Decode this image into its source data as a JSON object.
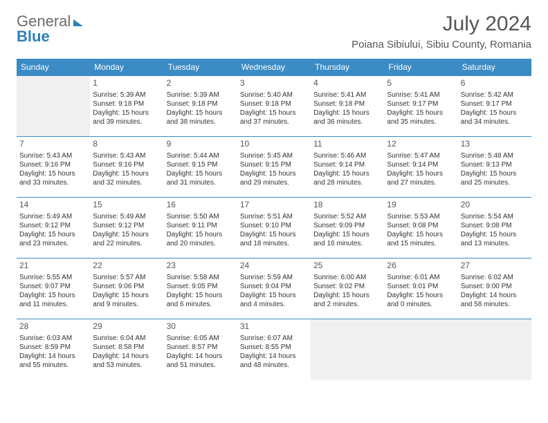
{
  "logo": {
    "general": "General",
    "blue": "Blue"
  },
  "title": "July 2024",
  "location": "Poiana Sibiului, Sibiu County, Romania",
  "colors": {
    "header_bg": "#3b8bc4",
    "header_text": "#ffffff",
    "cell_border": "#3b8bc4",
    "empty_bg": "#f0f0f0",
    "text": "#333333",
    "title_text": "#555555"
  },
  "day_headers": [
    "Sunday",
    "Monday",
    "Tuesday",
    "Wednesday",
    "Thursday",
    "Friday",
    "Saturday"
  ],
  "weeks": [
    [
      null,
      {
        "day": 1,
        "sunrise": "5:39 AM",
        "sunset": "9:18 PM",
        "daylight": "15 hours and 39 minutes."
      },
      {
        "day": 2,
        "sunrise": "5:39 AM",
        "sunset": "9:18 PM",
        "daylight": "15 hours and 38 minutes."
      },
      {
        "day": 3,
        "sunrise": "5:40 AM",
        "sunset": "9:18 PM",
        "daylight": "15 hours and 37 minutes."
      },
      {
        "day": 4,
        "sunrise": "5:41 AM",
        "sunset": "9:18 PM",
        "daylight": "15 hours and 36 minutes."
      },
      {
        "day": 5,
        "sunrise": "5:41 AM",
        "sunset": "9:17 PM",
        "daylight": "15 hours and 35 minutes."
      },
      {
        "day": 6,
        "sunrise": "5:42 AM",
        "sunset": "9:17 PM",
        "daylight": "15 hours and 34 minutes."
      }
    ],
    [
      {
        "day": 7,
        "sunrise": "5:43 AM",
        "sunset": "9:16 PM",
        "daylight": "15 hours and 33 minutes."
      },
      {
        "day": 8,
        "sunrise": "5:43 AM",
        "sunset": "9:16 PM",
        "daylight": "15 hours and 32 minutes."
      },
      {
        "day": 9,
        "sunrise": "5:44 AM",
        "sunset": "9:15 PM",
        "daylight": "15 hours and 31 minutes."
      },
      {
        "day": 10,
        "sunrise": "5:45 AM",
        "sunset": "9:15 PM",
        "daylight": "15 hours and 29 minutes."
      },
      {
        "day": 11,
        "sunrise": "5:46 AM",
        "sunset": "9:14 PM",
        "daylight": "15 hours and 28 minutes."
      },
      {
        "day": 12,
        "sunrise": "5:47 AM",
        "sunset": "9:14 PM",
        "daylight": "15 hours and 27 minutes."
      },
      {
        "day": 13,
        "sunrise": "5:48 AM",
        "sunset": "9:13 PM",
        "daylight": "15 hours and 25 minutes."
      }
    ],
    [
      {
        "day": 14,
        "sunrise": "5:49 AM",
        "sunset": "9:12 PM",
        "daylight": "15 hours and 23 minutes."
      },
      {
        "day": 15,
        "sunrise": "5:49 AM",
        "sunset": "9:12 PM",
        "daylight": "15 hours and 22 minutes."
      },
      {
        "day": 16,
        "sunrise": "5:50 AM",
        "sunset": "9:11 PM",
        "daylight": "15 hours and 20 minutes."
      },
      {
        "day": 17,
        "sunrise": "5:51 AM",
        "sunset": "9:10 PM",
        "daylight": "15 hours and 18 minutes."
      },
      {
        "day": 18,
        "sunrise": "5:52 AM",
        "sunset": "9:09 PM",
        "daylight": "15 hours and 16 minutes."
      },
      {
        "day": 19,
        "sunrise": "5:53 AM",
        "sunset": "9:08 PM",
        "daylight": "15 hours and 15 minutes."
      },
      {
        "day": 20,
        "sunrise": "5:54 AM",
        "sunset": "9:08 PM",
        "daylight": "15 hours and 13 minutes."
      }
    ],
    [
      {
        "day": 21,
        "sunrise": "5:55 AM",
        "sunset": "9:07 PM",
        "daylight": "15 hours and 11 minutes."
      },
      {
        "day": 22,
        "sunrise": "5:57 AM",
        "sunset": "9:06 PM",
        "daylight": "15 hours and 9 minutes."
      },
      {
        "day": 23,
        "sunrise": "5:58 AM",
        "sunset": "9:05 PM",
        "daylight": "15 hours and 6 minutes."
      },
      {
        "day": 24,
        "sunrise": "5:59 AM",
        "sunset": "9:04 PM",
        "daylight": "15 hours and 4 minutes."
      },
      {
        "day": 25,
        "sunrise": "6:00 AM",
        "sunset": "9:02 PM",
        "daylight": "15 hours and 2 minutes."
      },
      {
        "day": 26,
        "sunrise": "6:01 AM",
        "sunset": "9:01 PM",
        "daylight": "15 hours and 0 minutes."
      },
      {
        "day": 27,
        "sunrise": "6:02 AM",
        "sunset": "9:00 PM",
        "daylight": "14 hours and 58 minutes."
      }
    ],
    [
      {
        "day": 28,
        "sunrise": "6:03 AM",
        "sunset": "8:59 PM",
        "daylight": "14 hours and 55 minutes."
      },
      {
        "day": 29,
        "sunrise": "6:04 AM",
        "sunset": "8:58 PM",
        "daylight": "14 hours and 53 minutes."
      },
      {
        "day": 30,
        "sunrise": "6:05 AM",
        "sunset": "8:57 PM",
        "daylight": "14 hours and 51 minutes."
      },
      {
        "day": 31,
        "sunrise": "6:07 AM",
        "sunset": "8:55 PM",
        "daylight": "14 hours and 48 minutes."
      },
      null,
      null,
      null
    ]
  ],
  "labels": {
    "sunrise": "Sunrise:",
    "sunset": "Sunset:",
    "daylight": "Daylight:"
  }
}
